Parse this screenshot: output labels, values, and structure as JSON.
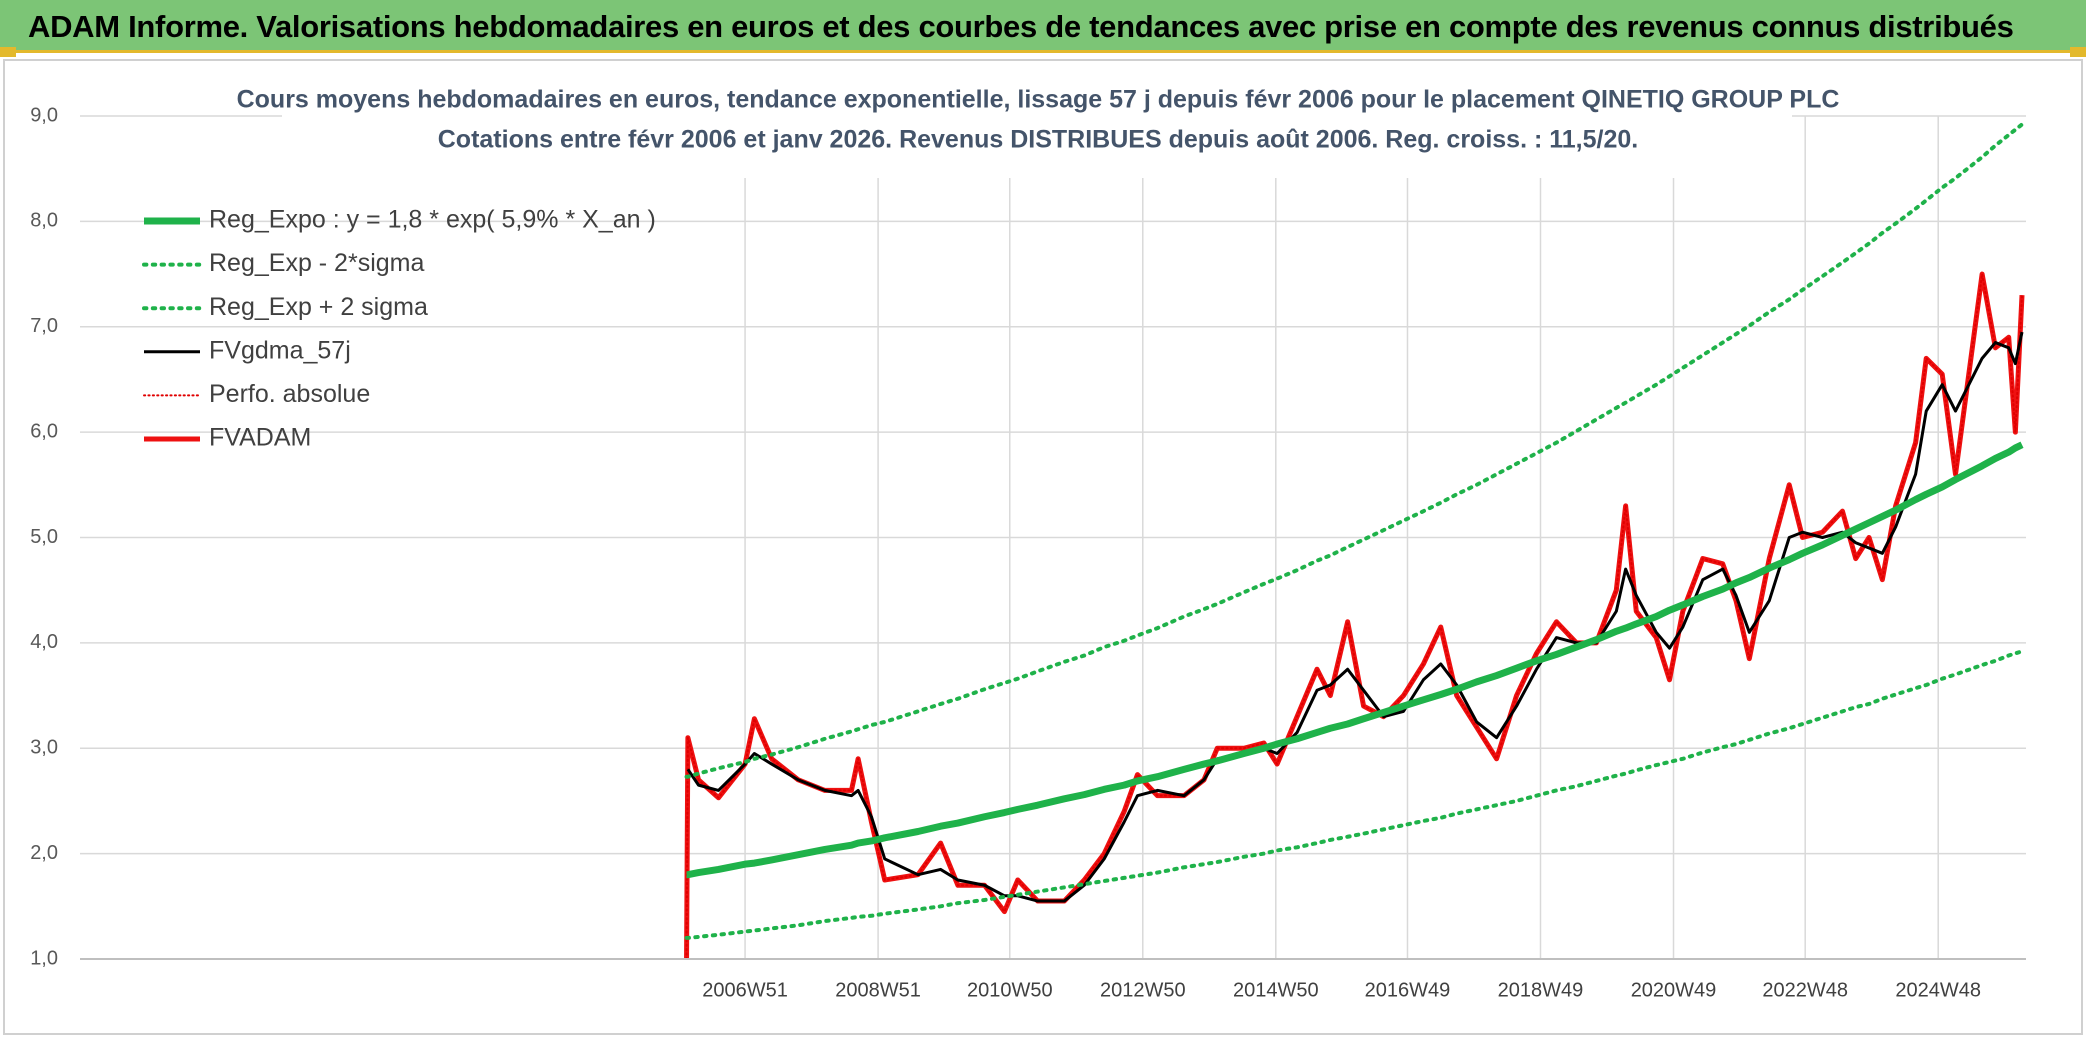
{
  "header": {
    "title": "ADAM Informe. Valorisations hebdomadaires en euros et des courbes de tendances avec prise en compte des revenus connus distribués"
  },
  "chart_data": {
    "type": "line",
    "title": "Cours moyens hebdomadaires en euros, tendance exponentielle, lissage 57 j depuis févr 2006 pour le placement QINETIQ GROUP PLC",
    "subtitle": "Cotations entre févr 2006 et janv 2026. Revenus DISTRIBUES depuis août 2006. Reg. croiss. : 11,5/20.",
    "x": [
      2006.08,
      2006.1,
      2006.26,
      2006.56,
      2006.96,
      2007.1,
      2007.36,
      2007.76,
      2008.16,
      2008.56,
      2008.66,
      2008.86,
      2009.06,
      2009.56,
      2009.9,
      2010.16,
      2010.56,
      2010.86,
      2011.06,
      2011.36,
      2011.76,
      2012.06,
      2012.36,
      2012.66,
      2012.86,
      2013.16,
      2013.56,
      2013.86,
      2014.06,
      2014.46,
      2014.76,
      2014.96,
      2015.26,
      2015.56,
      2015.76,
      2016.02,
      2016.26,
      2016.56,
      2016.86,
      2017.16,
      2017.42,
      2017.66,
      2017.96,
      2018.26,
      2018.56,
      2018.86,
      2019.16,
      2019.46,
      2019.76,
      2020.06,
      2020.2,
      2020.36,
      2020.66,
      2020.86,
      2021.06,
      2021.36,
      2021.66,
      2021.86,
      2022.06,
      2022.36,
      2022.66,
      2022.86,
      2023.16,
      2023.46,
      2023.66,
      2023.86,
      2024.06,
      2024.26,
      2024.56,
      2024.72,
      2024.96,
      2025.16,
      2025.56,
      2025.76,
      2025.96,
      2026.06,
      2026.16
    ],
    "series": [
      {
        "name": "Reg_Expo : y = 1,8 * exp( 5,9% *  X_an )",
        "color": "#1fb24a",
        "style": "solid",
        "width": 7,
        "values": [
          1.8,
          1.8,
          1.82,
          1.85,
          1.9,
          1.91,
          1.94,
          1.99,
          2.04,
          2.08,
          2.1,
          2.12,
          2.15,
          2.21,
          2.26,
          2.29,
          2.35,
          2.39,
          2.42,
          2.46,
          2.52,
          2.56,
          2.61,
          2.65,
          2.69,
          2.73,
          2.8,
          2.85,
          2.88,
          2.95,
          3.0,
          3.04,
          3.09,
          3.15,
          3.19,
          3.23,
          3.28,
          3.34,
          3.4,
          3.46,
          3.51,
          3.56,
          3.63,
          3.69,
          3.76,
          3.83,
          3.89,
          3.96,
          4.03,
          4.11,
          4.14,
          4.18,
          4.25,
          4.31,
          4.36,
          4.44,
          4.51,
          4.57,
          4.62,
          4.71,
          4.79,
          4.85,
          4.93,
          5.02,
          5.08,
          5.14,
          5.2,
          5.26,
          5.36,
          5.41,
          5.48,
          5.55,
          5.68,
          5.75,
          5.81,
          5.85,
          5.88
        ]
      },
      {
        "name": "Reg_Exp - 2*sigma",
        "color": "#1fb24a",
        "style": "dotted",
        "width": 4,
        "values": [
          1.2,
          1.2,
          1.21,
          1.23,
          1.26,
          1.27,
          1.29,
          1.32,
          1.36,
          1.39,
          1.4,
          1.41,
          1.43,
          1.47,
          1.5,
          1.53,
          1.56,
          1.59,
          1.61,
          1.64,
          1.68,
          1.71,
          1.74,
          1.77,
          1.79,
          1.82,
          1.87,
          1.9,
          1.92,
          1.97,
          2.0,
          2.03,
          2.06,
          2.1,
          2.13,
          2.16,
          2.19,
          2.23,
          2.27,
          2.31,
          2.34,
          2.38,
          2.42,
          2.46,
          2.5,
          2.55,
          2.6,
          2.64,
          2.69,
          2.74,
          2.76,
          2.79,
          2.84,
          2.87,
          2.9,
          2.96,
          3.01,
          3.04,
          3.08,
          3.14,
          3.19,
          3.23,
          3.29,
          3.35,
          3.39,
          3.42,
          3.47,
          3.51,
          3.57,
          3.6,
          3.66,
          3.7,
          3.79,
          3.83,
          3.88,
          3.9,
          3.92
        ]
      },
      {
        "name": "Reg_Exp + 2 sigma",
        "color": "#1fb24a",
        "style": "dotted",
        "width": 4,
        "values": [
          2.73,
          2.73,
          2.76,
          2.81,
          2.87,
          2.9,
          2.94,
          3.01,
          3.09,
          3.16,
          3.18,
          3.22,
          3.25,
          3.35,
          3.42,
          3.47,
          3.56,
          3.62,
          3.66,
          3.73,
          3.82,
          3.88,
          3.96,
          4.02,
          4.07,
          4.14,
          4.25,
          4.32,
          4.37,
          4.48,
          4.56,
          4.61,
          4.69,
          4.78,
          4.83,
          4.91,
          4.98,
          5.07,
          5.16,
          5.25,
          5.33,
          5.41,
          5.5,
          5.6,
          5.7,
          5.8,
          5.9,
          6.01,
          6.12,
          6.23,
          6.28,
          6.34,
          6.45,
          6.53,
          6.61,
          6.73,
          6.85,
          6.93,
          7.01,
          7.14,
          7.26,
          7.35,
          7.48,
          7.61,
          7.7,
          7.79,
          7.89,
          7.98,
          8.12,
          8.2,
          8.32,
          8.41,
          8.61,
          8.72,
          8.82,
          8.87,
          8.92
        ]
      },
      {
        "name": "FVgdma_57j",
        "color": "#000000",
        "style": "solid",
        "width": 3,
        "values": [
          null,
          2.8,
          2.65,
          2.6,
          2.85,
          2.95,
          2.85,
          2.7,
          2.6,
          2.55,
          2.6,
          2.35,
          1.95,
          1.8,
          1.85,
          1.75,
          1.7,
          1.6,
          1.6,
          1.55,
          1.55,
          1.7,
          1.95,
          2.3,
          2.55,
          2.6,
          2.55,
          2.7,
          2.9,
          2.95,
          3.0,
          2.95,
          3.15,
          3.55,
          3.6,
          3.75,
          3.55,
          3.3,
          3.35,
          3.65,
          3.8,
          3.6,
          3.25,
          3.1,
          3.4,
          3.75,
          4.05,
          4.0,
          4.0,
          4.3,
          4.7,
          4.45,
          4.1,
          3.95,
          4.15,
          4.6,
          4.7,
          4.45,
          4.1,
          4.4,
          5.0,
          5.05,
          5.0,
          5.05,
          4.95,
          4.9,
          4.85,
          5.1,
          5.6,
          6.2,
          6.45,
          6.2,
          6.7,
          6.85,
          6.8,
          6.65,
          6.95
        ]
      },
      {
        "name": "Perfo. absolue",
        "color": "#e00000",
        "style": "dotted",
        "width": 2,
        "values": [
          1.0,
          3.1,
          2.7,
          2.53,
          2.85,
          3.28,
          2.9,
          2.7,
          2.6,
          2.6,
          2.9,
          2.3,
          1.75,
          1.8,
          2.1,
          1.7,
          1.7,
          1.45,
          1.75,
          1.55,
          1.55,
          1.75,
          2.0,
          2.4,
          2.75,
          2.55,
          2.55,
          2.7,
          3.0,
          3.0,
          3.05,
          2.85,
          3.3,
          3.75,
          3.5,
          4.2,
          3.4,
          3.3,
          3.5,
          3.8,
          4.15,
          3.5,
          3.2,
          2.9,
          3.5,
          3.9,
          4.2,
          4.0,
          4.0,
          4.5,
          5.3,
          4.3,
          4.05,
          3.65,
          4.3,
          4.8,
          4.75,
          4.4,
          3.85,
          4.8,
          5.5,
          5.0,
          5.05,
          5.25,
          4.8,
          5.0,
          4.6,
          5.3,
          5.9,
          6.7,
          6.55,
          5.6,
          7.5,
          6.8,
          6.9,
          6.0,
          7.3
        ]
      },
      {
        "name": "FVADAM",
        "color": "#ee1111",
        "style": "solid",
        "width": 5,
        "values": [
          1.0,
          3.1,
          2.7,
          2.53,
          2.85,
          3.28,
          2.9,
          2.7,
          2.6,
          2.6,
          2.9,
          2.3,
          1.75,
          1.8,
          2.1,
          1.7,
          1.7,
          1.45,
          1.75,
          1.55,
          1.55,
          1.75,
          2.0,
          2.4,
          2.75,
          2.55,
          2.55,
          2.7,
          3.0,
          3.0,
          3.05,
          2.85,
          3.3,
          3.75,
          3.5,
          4.2,
          3.4,
          3.3,
          3.5,
          3.8,
          4.15,
          3.5,
          3.2,
          2.9,
          3.5,
          3.9,
          4.2,
          4.0,
          4.0,
          4.5,
          5.3,
          4.3,
          4.05,
          3.65,
          4.3,
          4.8,
          4.75,
          4.4,
          3.85,
          4.8,
          5.5,
          5.0,
          5.05,
          5.25,
          4.8,
          5.0,
          4.6,
          5.3,
          5.9,
          6.7,
          6.55,
          5.6,
          7.5,
          6.8,
          6.9,
          6.0,
          7.3
        ]
      }
    ],
    "xlim": [
      1996.96,
      2026.22
    ],
    "xticks": [
      {
        "value": 2006.96,
        "label": "2006W51"
      },
      {
        "value": 2008.96,
        "label": "2008W51"
      },
      {
        "value": 2010.94,
        "label": "2010W50"
      },
      {
        "value": 2012.94,
        "label": "2012W50"
      },
      {
        "value": 2014.94,
        "label": "2014W50"
      },
      {
        "value": 2016.92,
        "label": "2016W49"
      },
      {
        "value": 2018.92,
        "label": "2018W49"
      },
      {
        "value": 2020.92,
        "label": "2020W49"
      },
      {
        "value": 2022.9,
        "label": "2022W48"
      },
      {
        "value": 2024.9,
        "label": "2024W48"
      }
    ],
    "ylim": [
      1,
      9
    ],
    "yticks": [
      {
        "value": 1,
        "label": "1,0"
      },
      {
        "value": 2,
        "label": "2,0"
      },
      {
        "value": 3,
        "label": "3,0"
      },
      {
        "value": 4,
        "label": "4,0"
      },
      {
        "value": 5,
        "label": "5,0"
      },
      {
        "value": 6,
        "label": "6,0"
      },
      {
        "value": 7,
        "label": "7,0"
      },
      {
        "value": 8,
        "label": "8,0"
      },
      {
        "value": 9,
        "label": "9,0"
      }
    ],
    "grid": true,
    "legend": "top-left"
  }
}
